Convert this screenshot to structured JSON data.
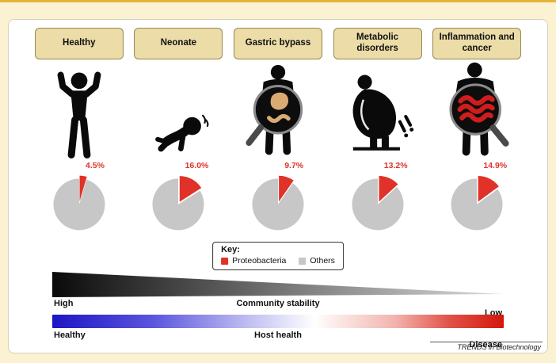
{
  "figure": {
    "columns": [
      {
        "label": "Healthy",
        "value_label": "4.5%"
      },
      {
        "label": "Neonate",
        "value_label": "16.0%"
      },
      {
        "label": "Gastric bypass",
        "value_label": "9.7%"
      },
      {
        "label": "Metabolic disorders",
        "value_label": "13.2%"
      },
      {
        "label": "Inflammation and cancer",
        "value_label": "14.9%"
      }
    ],
    "key": {
      "title": "Key:",
      "items": [
        {
          "label": "Proteobacteria",
          "color": "#e03228"
        },
        {
          "label": "Others",
          "color": "#c7c7c7"
        }
      ]
    },
    "stability_axis": {
      "left": "High",
      "center": "Community stability",
      "right": "Low",
      "gradient": [
        "#0a0a0a",
        "#dcdcdc"
      ]
    },
    "health_axis": {
      "left": "Healthy",
      "center": "Host health",
      "right": "Disease",
      "gradient": [
        "#1d15c4 0%",
        "#5a54dd 22%",
        "#b9b7f0 42%",
        "#ffffff 58%",
        "#f2b3ad 76%",
        "#e05248 88%",
        "#d3170c 100%"
      ]
    },
    "attribution": "TRENDS in Biotechnology"
  },
  "chart_data": {
    "type": "pie",
    "legend": [
      "Proteobacteria",
      "Others"
    ],
    "colors": [
      "#e03228",
      "#c7c7c7"
    ],
    "series": [
      {
        "name": "Healthy",
        "values": [
          4.5,
          95.5
        ]
      },
      {
        "name": "Neonate",
        "values": [
          16.0,
          84.0
        ]
      },
      {
        "name": "Gastric bypass",
        "values": [
          9.7,
          90.3
        ]
      },
      {
        "name": "Metabolic disorders",
        "values": [
          13.2,
          86.8
        ]
      },
      {
        "name": "Inflammation and cancer",
        "values": [
          14.9,
          85.1
        ]
      }
    ]
  }
}
